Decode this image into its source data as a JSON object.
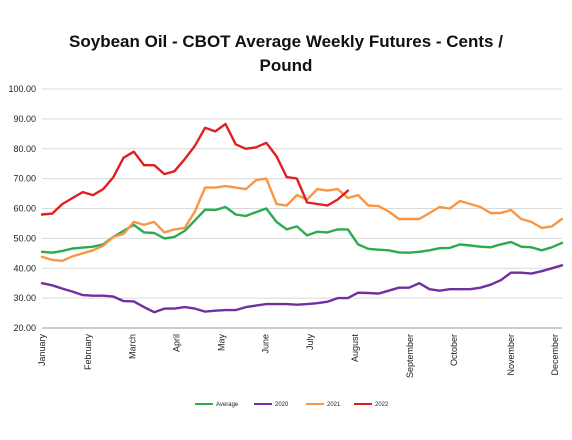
{
  "chart_data": {
    "type": "line",
    "title": "Soybean Oil - CBOT Average Weekly Futures - Cents / Pound",
    "title_lines": [
      "Soybean Oil - CBOT Average Weekly Futures - Cents /",
      "Pound"
    ],
    "xlabel": "",
    "ylabel": "",
    "ylim": [
      20,
      100
    ],
    "yticks": [
      "20.00",
      "30.00",
      "40.00",
      "50.00",
      "60.00",
      "70.00",
      "80.00",
      "90.00",
      "100.00"
    ],
    "x_weeks": 52,
    "xticks": [
      {
        "label": "January",
        "week": 1
      },
      {
        "label": "February",
        "week": 5.5
      },
      {
        "label": "March",
        "week": 9.9
      },
      {
        "label": "April",
        "week": 14.2
      },
      {
        "label": "May",
        "week": 18.6
      },
      {
        "label": "June",
        "week": 22.9
      },
      {
        "label": "July",
        "week": 27.3
      },
      {
        "label": "August",
        "week": 31.7
      },
      {
        "label": "September",
        "week": 37.1
      },
      {
        "label": "October",
        "week": 41.4
      },
      {
        "label": "November",
        "week": 47.0
      },
      {
        "label": "December",
        "week": 51.3
      }
    ],
    "grid": true,
    "legend_position": "bottom",
    "series": [
      {
        "name": "Average",
        "color": "#2eaa4e",
        "values": [
          45.5,
          45.2,
          45.8,
          46.6,
          46.9,
          47.2,
          48.0,
          50.5,
          52.5,
          54.5,
          52.0,
          51.8,
          50.0,
          50.5,
          52.5,
          56.0,
          59.6,
          59.5,
          60.5,
          58.0,
          57.5,
          58.8,
          60.0,
          55.5,
          53.0,
          54.0,
          51.0,
          52.2,
          52.0,
          53.0,
          53.0,
          48.0,
          46.5,
          46.2,
          46.0,
          45.3,
          45.2,
          45.5,
          46.0,
          46.7,
          46.8,
          48.0,
          47.6,
          47.2,
          47.0,
          48.0,
          48.8,
          47.2,
          47.0,
          46.0,
          47.0,
          48.5
        ]
      },
      {
        "name": "2020",
        "color": "#7030a0",
        "values": [
          35.0,
          34.3,
          33.2,
          32.2,
          31.0,
          30.8,
          30.8,
          30.5,
          29.0,
          28.9,
          27.0,
          25.3,
          26.5,
          26.5,
          27.0,
          26.5,
          25.5,
          25.8,
          26.0,
          26.0,
          27.0,
          27.5,
          28.0,
          28.0,
          28.0,
          27.8,
          28.0,
          28.3,
          28.8,
          30.0,
          30.0,
          31.8,
          31.7,
          31.5,
          32.5,
          33.5,
          33.5,
          35.0,
          33.0,
          32.5,
          33.0,
          33.0,
          33.0,
          33.5,
          34.5,
          36.0,
          38.5,
          38.5,
          38.2,
          39.0,
          40.0,
          41.0
        ]
      },
      {
        "name": "2021",
        "color": "#f79646",
        "values": [
          43.8,
          42.8,
          42.5,
          44.0,
          45.0,
          46.0,
          47.5,
          50.5,
          51.5,
          55.5,
          54.5,
          55.5,
          52.0,
          53.0,
          53.5,
          59.0,
          67.0,
          67.0,
          67.5,
          67.0,
          66.5,
          69.5,
          70.0,
          61.5,
          61.0,
          64.5,
          63.0,
          66.5,
          66.0,
          66.5,
          63.5,
          64.5,
          61.0,
          60.8,
          59.0,
          56.5,
          56.5,
          56.5,
          58.5,
          60.5,
          60.0,
          62.5,
          61.5,
          60.5,
          58.5,
          58.5,
          59.5,
          56.5,
          55.5,
          53.5,
          54.0,
          56.5
        ]
      },
      {
        "name": "2022",
        "color": "#e02020",
        "values": [
          58.0,
          58.3,
          61.5,
          63.5,
          65.5,
          64.5,
          66.5,
          70.5,
          77.0,
          79.0,
          74.5,
          74.5,
          71.5,
          72.5,
          76.5,
          81.0,
          87.0,
          85.8,
          88.3,
          81.5,
          80.0,
          80.5,
          82.0,
          77.5,
          70.5,
          70.0,
          62.0,
          61.5,
          61.0,
          63.0,
          66.0
        ]
      }
    ]
  }
}
